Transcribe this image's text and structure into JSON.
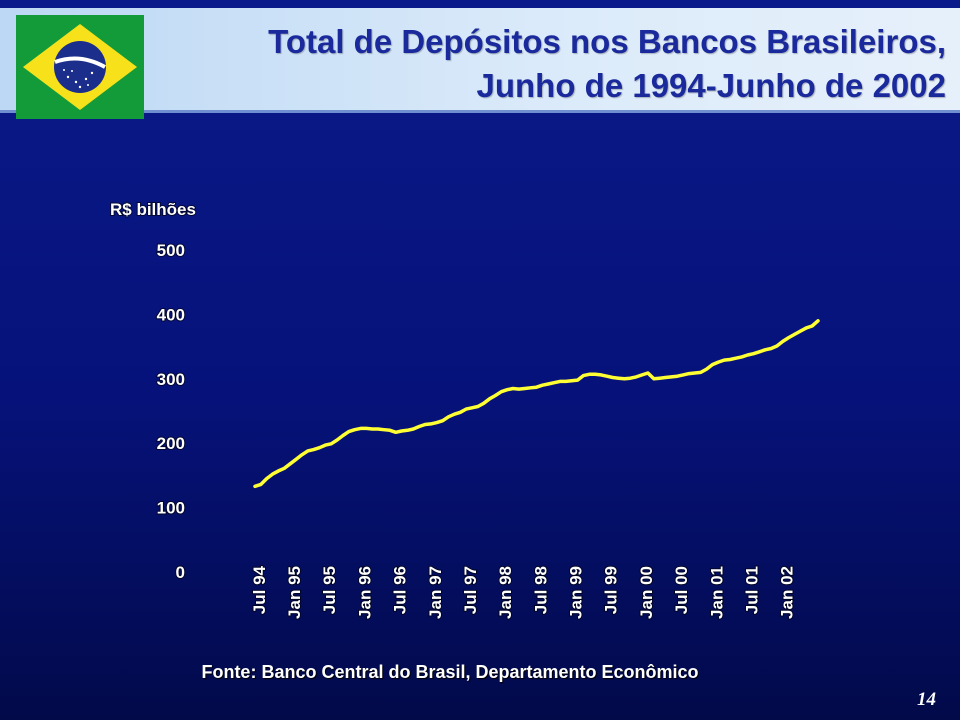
{
  "slide": {
    "title_line1": "Total de Depósitos nos Bancos Brasileiros,",
    "title_line2": "Junho de 1994-Junho de 2002",
    "source": "Fonte: Banco Central do Brasil, Departamento Econômico",
    "page_number": "14"
  },
  "colors": {
    "line": "#ffff33",
    "flag_green": "#139b3a",
    "flag_yellow": "#f7e11b",
    "flag_blue": "#1c2e8c"
  },
  "chart_data": {
    "type": "line",
    "title": "",
    "ylabel": "R$ bilhões",
    "xlabel": "",
    "ylim": [
      0,
      500
    ],
    "yticks": [
      0,
      100,
      200,
      300,
      400,
      500
    ],
    "grid": false,
    "legend": "none",
    "x_tick_labels": [
      "Jul 94",
      "Jan 95",
      "Jul 95",
      "Jan 96",
      "Jul 96",
      "Jan 97",
      "Jul 97",
      "Jan 98",
      "Jul 98",
      "Jan 99",
      "Jul 99",
      "Jan 00",
      "Jul 00",
      "Jan 01",
      "Jul 01",
      "Jan 02"
    ],
    "x_start": "Jun 94",
    "x_end": "Jun 02",
    "series": [
      {
        "name": "",
        "values": [
          133,
          136,
          145,
          152,
          157,
          161,
          168,
          175,
          182,
          188,
          190,
          193,
          197,
          199,
          205,
          212,
          218,
          221,
          223,
          223,
          222,
          222,
          221,
          220,
          217,
          219,
          220,
          222,
          226,
          229,
          230,
          232,
          235,
          241,
          245,
          248,
          253,
          255,
          257,
          262,
          269,
          274,
          280,
          283,
          285,
          284,
          285,
          286,
          287,
          290,
          292,
          294,
          296,
          296,
          297,
          298,
          305,
          307,
          307,
          306,
          304,
          302,
          301,
          300,
          301,
          303,
          306,
          309,
          300,
          301,
          302,
          303,
          304,
          306,
          308,
          309,
          310,
          315,
          322,
          326,
          329,
          330,
          332,
          334,
          337,
          339,
          342,
          345,
          347,
          351,
          358,
          364,
          369,
          374,
          379,
          382,
          390
        ]
      }
    ]
  }
}
